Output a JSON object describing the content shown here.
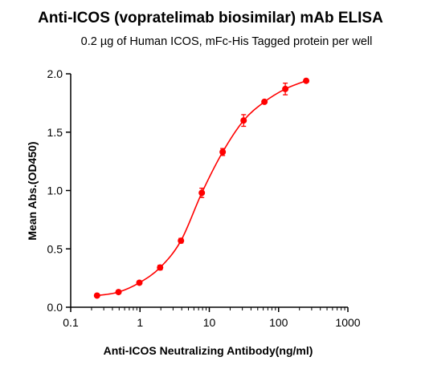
{
  "chart_data": {
    "type": "scatter",
    "title": "Anti-ICOS (vopratelimab biosimilar) mAb ELISA",
    "subtitle": "0.2 µg of Human ICOS, mFc-His Tagged protein per well",
    "xlabel": "Anti-ICOS Neutralizing Antibody(ng/ml)",
    "ylabel": "Mean Abs.(OD450)",
    "x_scale": "log",
    "xlim": [
      0.1,
      1000
    ],
    "ylim": [
      0,
      2.0
    ],
    "x_ticks": [
      0.1,
      1,
      10,
      100,
      1000
    ],
    "x_tick_labels": [
      "0.1",
      "1",
      "10",
      "100",
      "1000"
    ],
    "y_ticks": [
      0,
      0.5,
      1.0,
      1.5,
      2.0
    ],
    "y_tick_labels": [
      "0.0",
      "0.5",
      "1.0",
      "1.5",
      "2.0"
    ],
    "grid": false,
    "color": "#ff0000",
    "x": [
      0.24,
      0.49,
      0.98,
      1.95,
      3.9,
      7.8,
      15.6,
      31.3,
      62.5,
      125,
      250
    ],
    "y": [
      0.1,
      0.13,
      0.21,
      0.34,
      0.57,
      0.98,
      1.33,
      1.6,
      1.76,
      1.87,
      1.94
    ],
    "error": [
      0.01,
      0.01,
      0.01,
      0.02,
      0.02,
      0.04,
      0.03,
      0.05,
      0.01,
      0.05,
      0.01
    ],
    "fit": "4PL sigmoidal curve"
  }
}
